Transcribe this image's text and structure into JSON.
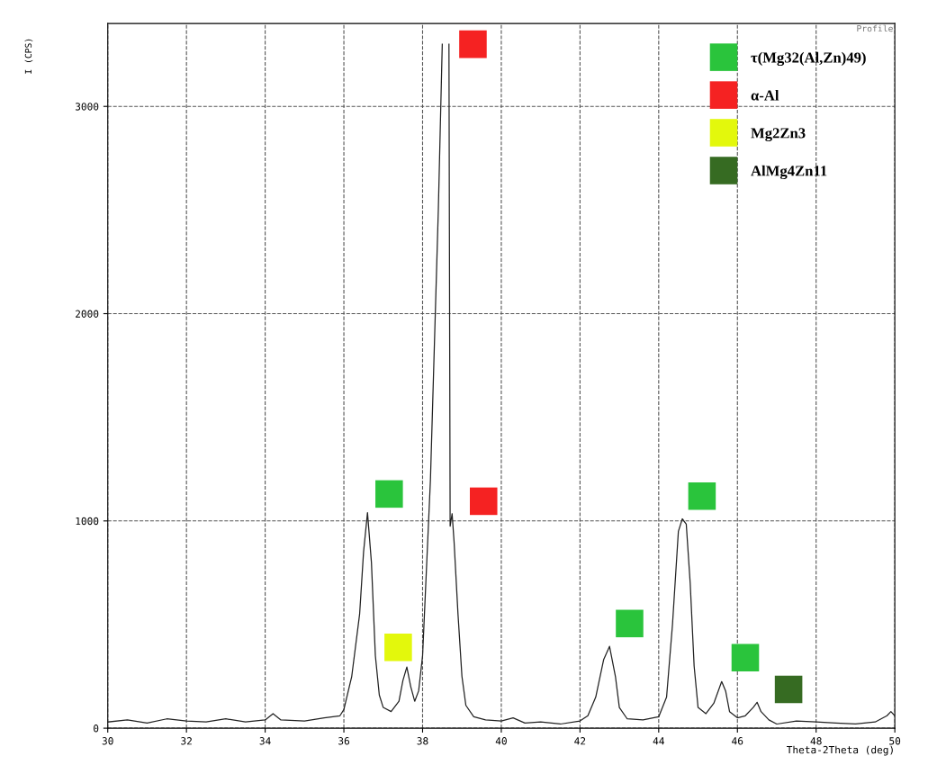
{
  "chart_data": {
    "type": "line",
    "xlabel": "Theta-2Theta (deg)",
    "ylabel": "I (CPS)",
    "xlim": [
      30,
      50
    ],
    "xticks": [
      30,
      32,
      34,
      36,
      38,
      40,
      42,
      44,
      46,
      48,
      50
    ],
    "ylim": [
      0,
      3400
    ],
    "yticks": [
      0,
      1000,
      2000,
      3000
    ],
    "grid": true,
    "legend": "top right",
    "annotations": [
      "Profile"
    ],
    "series": [
      {
        "color": "#222222",
        "marker": "none",
        "line_style": "solid",
        "x": [
          30,
          30.5,
          31,
          31.5,
          32,
          32.5,
          33,
          33.5,
          34,
          34.2,
          34.4,
          35,
          35.5,
          35.9,
          36.0,
          36.2,
          36.4,
          36.5,
          36.6,
          36.7,
          36.8,
          36.9,
          37.0,
          37.2,
          37.4,
          37.5,
          37.6,
          37.7,
          37.8,
          37.9,
          38.0,
          38.2,
          38.4,
          38.5,
          38.55,
          38.65,
          38.67,
          38.7,
          38.75,
          38.8,
          38.9,
          39.0,
          39.1,
          39.3,
          39.6,
          40,
          40.3,
          40.6,
          41,
          41.5,
          42,
          42.2,
          42.4,
          42.6,
          42.75,
          42.9,
          43.0,
          43.2,
          43.6,
          44.0,
          44.2,
          44.35,
          44.5,
          44.6,
          44.7,
          44.8,
          44.9,
          45.0,
          45.2,
          45.4,
          45.6,
          45.7,
          45.8,
          46.0,
          46.2,
          46.4,
          46.5,
          46.6,
          46.8,
          47,
          47.5,
          48,
          48.5,
          49,
          49.5,
          49.8,
          49.9,
          50
        ],
        "values": [
          30,
          40,
          25,
          45,
          35,
          30,
          45,
          30,
          40,
          70,
          40,
          35,
          50,
          60,
          90,
          250,
          550,
          850,
          1040,
          800,
          350,
          160,
          100,
          80,
          130,
          230,
          295,
          200,
          130,
          180,
          350,
          1200,
          2500,
          3300,
          null,
          null,
          3300,
          975,
          1035,
          900,
          550,
          250,
          110,
          55,
          40,
          35,
          50,
          25,
          30,
          20,
          35,
          60,
          150,
          330,
          395,
          250,
          100,
          45,
          40,
          55,
          150,
          500,
          950,
          1010,
          985,
          700,
          300,
          100,
          70,
          120,
          225,
          180,
          80,
          50,
          60,
          100,
          125,
          80,
          40,
          20,
          35,
          30,
          25,
          20,
          30,
          60,
          80,
          60
        ]
      },
      {
        "type": "scatter",
        "name": "τ(Mg32(Al,Zn)49)",
        "color": "#2ac43c",
        "marker": "square",
        "x": [
          37.15,
          43.26,
          45.1,
          46.2
        ],
        "values": [
          1130,
          505,
          1120,
          340
        ]
      },
      {
        "type": "scatter",
        "name": "α-Al",
        "color": "#f52222",
        "marker": "square",
        "x": [
          39.28,
          39.55
        ],
        "values": [
          3300,
          1095
        ]
      },
      {
        "type": "scatter",
        "name": "Mg2Zn3",
        "color": "#e3f80c",
        "marker": "square",
        "x": [
          37.38
        ],
        "values": [
          390
        ]
      },
      {
        "type": "scatter",
        "name": "AlMg4Zn11",
        "color": "#366b22",
        "marker": "square",
        "x": [
          47.3
        ],
        "values": [
          187
        ]
      }
    ]
  }
}
